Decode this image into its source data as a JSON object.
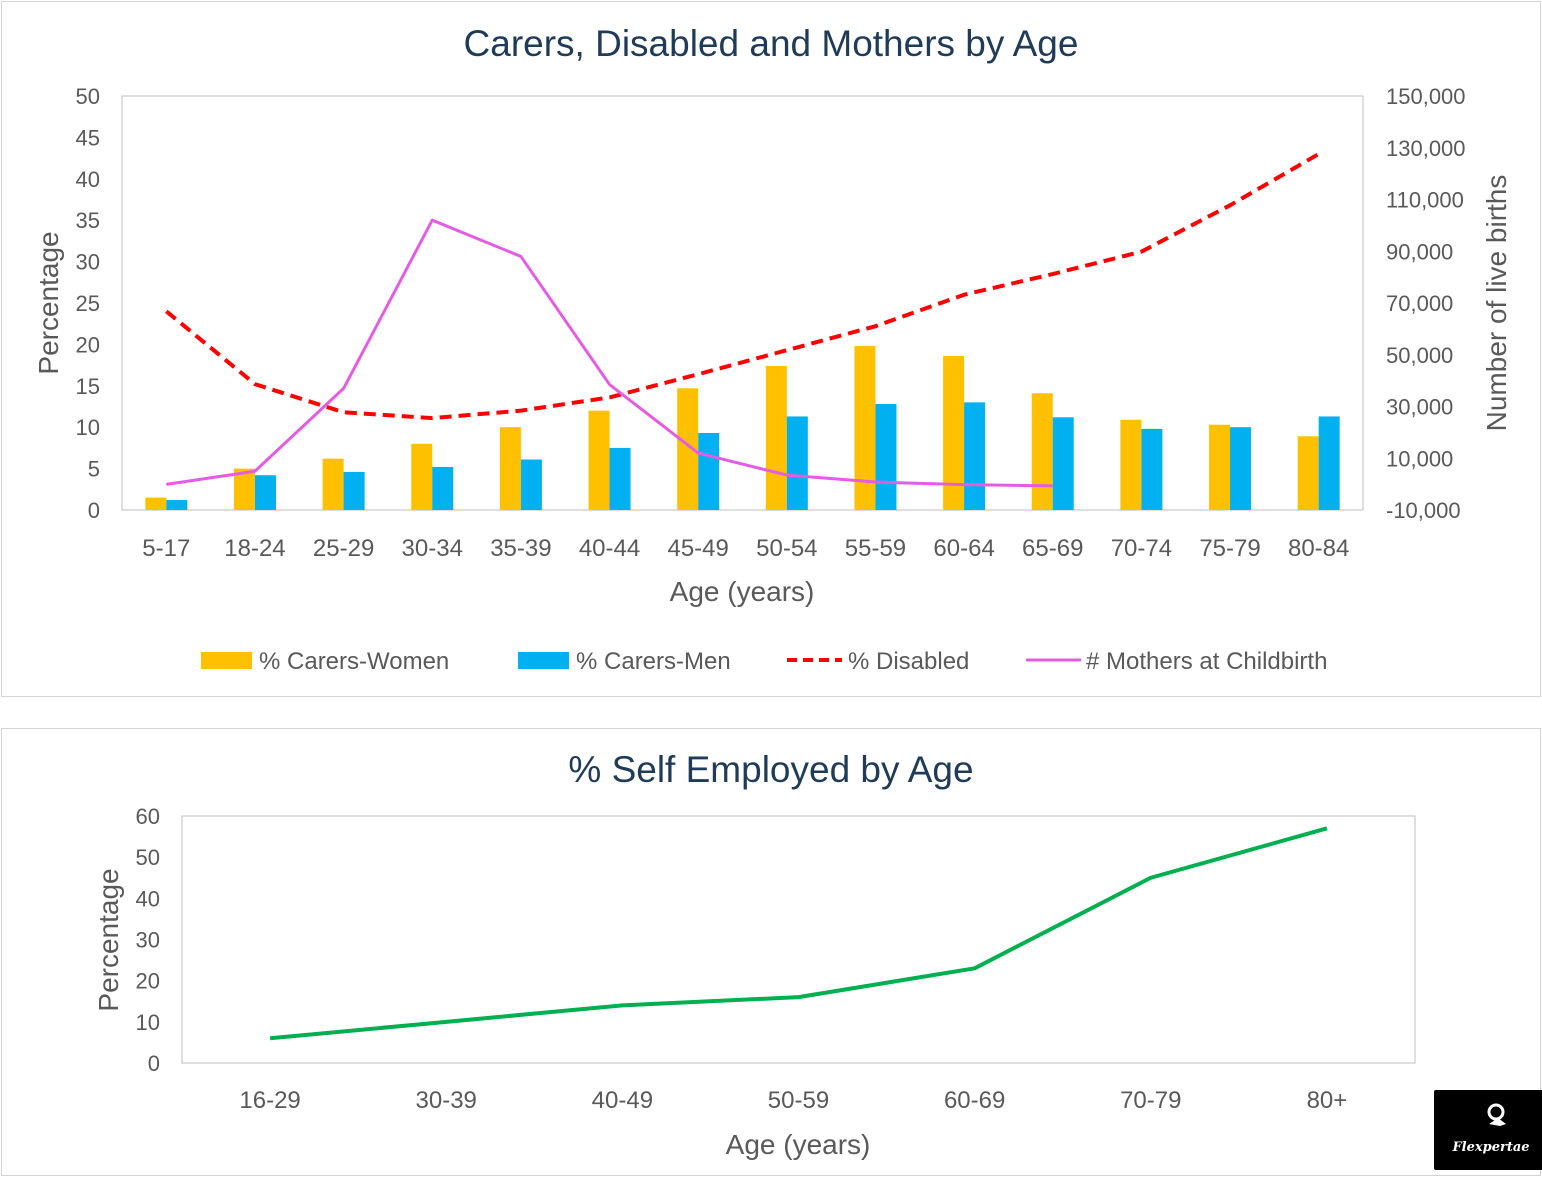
{
  "chart_data": [
    {
      "type": "bar",
      "title": "Carers, Disabled and Mothers by Age",
      "xlabel": "Age (years)",
      "ylabel": "Percentage",
      "y2label": "Number of live births",
      "categories": [
        "5-17",
        "18-24",
        "25-29",
        "30-34",
        "35-39",
        "40-44",
        "45-49",
        "50-54",
        "55-59",
        "60-64",
        "65-69",
        "70-74",
        "75-79",
        "80-84"
      ],
      "ylim": [
        0,
        50
      ],
      "yticks": [
        0,
        5,
        10,
        15,
        20,
        25,
        30,
        35,
        40,
        45,
        50
      ],
      "y2lim": [
        -10000,
        150000
      ],
      "y2ticks": [
        "-10,000",
        "10,000",
        "30,000",
        "50,000",
        "70,000",
        "90,000",
        "110,000",
        "130,000",
        "150,000"
      ],
      "y2tick_values": [
        -10000,
        10000,
        30000,
        50000,
        70000,
        90000,
        110000,
        130000,
        150000
      ],
      "legend_position": "bottom",
      "grid": false,
      "series": [
        {
          "name": "% Carers-Women",
          "type": "bar",
          "axis": "left",
          "color": "#ffc000",
          "values": [
            1.5,
            5,
            6.2,
            8,
            10,
            12,
            14.7,
            17.4,
            19.8,
            18.6,
            14.1,
            10.9,
            10.3,
            8.9
          ]
        },
        {
          "name": "% Carers-Men",
          "type": "bar",
          "axis": "left",
          "color": "#00b0f0",
          "values": [
            1.2,
            4.2,
            4.6,
            5.2,
            6.1,
            7.5,
            9.3,
            11.3,
            12.8,
            13,
            11.2,
            9.8,
            10,
            11.3
          ]
        },
        {
          "name": "% Disabled",
          "type": "line",
          "style": "dashed",
          "axis": "left",
          "color": "#ff0000",
          "values": [
            24,
            15.2,
            11.8,
            11.1,
            12,
            13.6,
            16.4,
            19.3,
            22.2,
            26,
            28.5,
            31.2,
            36.8,
            43
          ]
        },
        {
          "name": "# Mothers at Childbirth",
          "type": "line",
          "axis": "right",
          "color": "#e35de3",
          "values": [
            -100,
            5000,
            37000,
            102000,
            88000,
            38500,
            12000,
            3500,
            800,
            -200,
            -700,
            null,
            null,
            null
          ]
        }
      ]
    },
    {
      "type": "line",
      "title": "% Self Employed by Age",
      "xlabel": "Age (years)",
      "ylabel": "Percentage",
      "categories": [
        "16-29",
        "30-39",
        "40-49",
        "50-59",
        "60-69",
        "70-79",
        "80+"
      ],
      "ylim": [
        0,
        60
      ],
      "yticks": [
        0,
        10,
        20,
        30,
        40,
        50,
        60
      ],
      "grid": false,
      "series": [
        {
          "color": "#00b050",
          "values": [
            6,
            10,
            14,
            16,
            23,
            45,
            57
          ]
        }
      ]
    }
  ],
  "logo": {
    "text": "Flexpertae"
  }
}
